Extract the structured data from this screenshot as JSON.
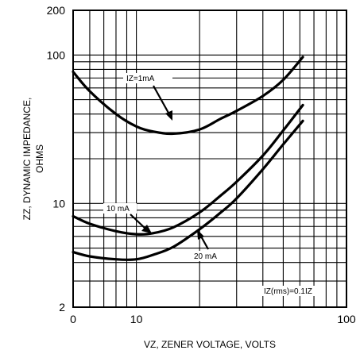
{
  "chart_data": {
    "type": "line",
    "xlabel": "VZ, ZENER VOLTAGE, VOLTS",
    "ylabel_line1": "ZZ, DYNAMIC IMPEDANCE,",
    "ylabel_line2": "OHMS",
    "x_scale": "log",
    "y_scale": "log",
    "xlim": [
      0,
      100
    ],
    "ylim": [
      2,
      200
    ],
    "x_ticks": [
      {
        "value": 0,
        "label": "0"
      },
      {
        "value": 10,
        "label": "10"
      },
      {
        "value": 100,
        "label": "100"
      }
    ],
    "y_ticks": [
      {
        "value": 2,
        "label": "2"
      },
      {
        "value": 10,
        "label": "10"
      },
      {
        "value": 100,
        "label": "100"
      },
      {
        "value": 200,
        "label": "200"
      }
    ],
    "grid": true,
    "series": [
      {
        "name": "IZ=1mA",
        "x": [
          5,
          6,
          8,
          10,
          12,
          15,
          20,
          25,
          30,
          40,
          50,
          62
        ],
        "y": [
          77,
          57,
          40,
          33,
          30.5,
          29.5,
          31.5,
          37,
          42,
          53,
          68,
          97
        ]
      },
      {
        "name": "10 mA",
        "x": [
          5,
          6,
          8,
          10,
          12,
          15,
          20,
          25,
          30,
          40,
          50,
          62
        ],
        "y": [
          8.2,
          7.3,
          6.5,
          6.2,
          6.3,
          6.9,
          8.7,
          11.2,
          14,
          21,
          31,
          46
        ]
      },
      {
        "name": "20 mA",
        "x": [
          5,
          6,
          8,
          10,
          12,
          15,
          20,
          25,
          30,
          40,
          50,
          62
        ],
        "y": [
          4.7,
          4.4,
          4.2,
          4.2,
          4.5,
          5.1,
          6.7,
          8.6,
          10.8,
          17,
          25,
          36
        ]
      }
    ],
    "annotations": [
      {
        "text": "IZ=1mA"
      },
      {
        "text": "10 mA"
      },
      {
        "text": "20 mA"
      },
      {
        "text": "IZ(rms)=0.1IZ"
      }
    ]
  }
}
